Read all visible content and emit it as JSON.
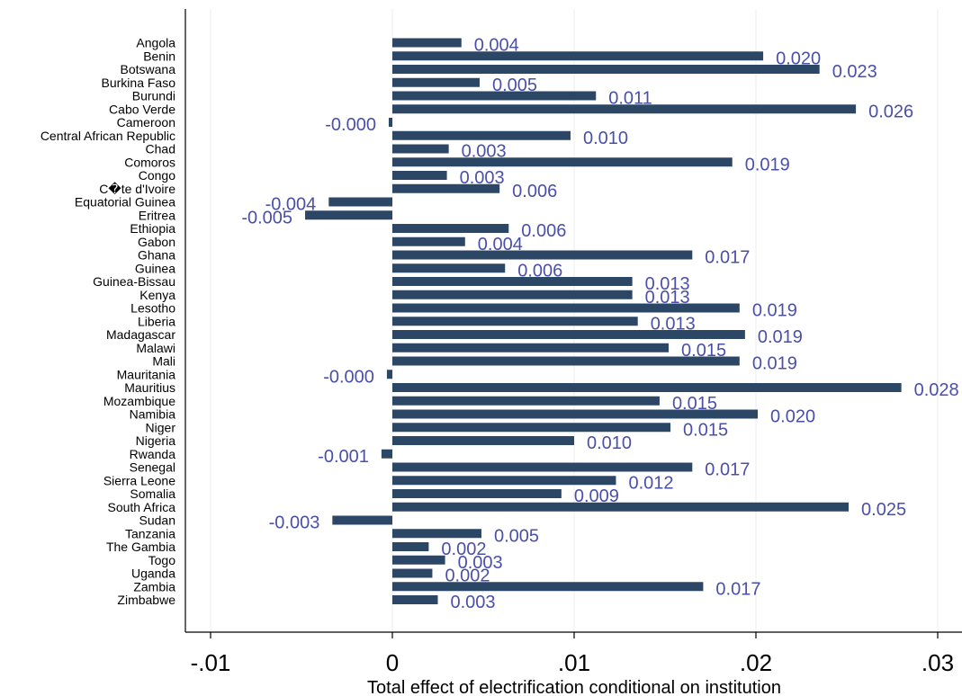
{
  "chart_data": {
    "type": "bar",
    "orientation": "horizontal",
    "xlabel": "Total effect of electrification conditional on institution",
    "ylabel": "",
    "xlim": [
      -0.011,
      0.0315
    ],
    "xticks": [
      -0.01,
      0,
      0.01,
      0.02,
      0.03
    ],
    "xtick_labels": [
      "-.01",
      "0",
      ".01",
      ".02",
      ".03"
    ],
    "grid": true,
    "bar_color": "#2c4666",
    "label_color": "#4a4fa8",
    "categories": [
      "Angola",
      "Benin",
      "Botswana",
      "Burkina Faso",
      "Burundi",
      "Cabo Verde",
      "Cameroon",
      "Central African Republic",
      "Chad",
      "Comoros",
      "Congo",
      "C�te d'Ivoire",
      "Equatorial Guinea",
      "Eritrea",
      "Ethiopia",
      "Gabon",
      "Ghana",
      "Guinea",
      "Guinea-Bissau",
      "Kenya",
      "Lesotho",
      "Liberia",
      "Madagascar",
      "Malawi",
      "Mali",
      "Mauritania",
      "Mauritius",
      "Mozambique",
      "Namibia",
      "Niger",
      "Nigeria",
      "Rwanda",
      "Senegal",
      "Sierra Leone",
      "Somalia",
      "South Africa",
      "Sudan",
      "Tanzania",
      "The Gambia",
      "Togo",
      "Uganda",
      "Zambia",
      "Zimbabwe"
    ],
    "values": [
      0.0038,
      0.0204,
      0.0235,
      0.0048,
      0.0112,
      0.0255,
      -0.0002,
      0.0098,
      0.0031,
      0.0187,
      0.003,
      0.0059,
      -0.0035,
      -0.0048,
      0.0064,
      0.004,
      0.0165,
      0.0062,
      0.0132,
      0.0132,
      0.0191,
      0.0135,
      0.0194,
      0.0152,
      0.0191,
      -0.0003,
      0.028,
      0.0147,
      0.0201,
      0.0153,
      0.01,
      -0.0006,
      0.0165,
      0.0123,
      0.0093,
      0.0251,
      -0.0033,
      0.0049,
      0.002,
      0.0029,
      0.0022,
      0.0171,
      0.0025
    ],
    "value_labels": [
      "0.004",
      "0.020",
      "0.023",
      "0.005",
      "0.011",
      "0.026",
      "-0.000",
      "0.010",
      "0.003",
      "0.019",
      "0.003",
      "0.006",
      "-0.004",
      "-0.005",
      "0.006",
      "0.004",
      "0.017",
      "0.006",
      "0.013",
      "0.013",
      "0.019",
      "0.013",
      "0.019",
      "0.015",
      "0.019",
      "-0.000",
      "0.028",
      "0.015",
      "0.020",
      "0.015",
      "0.010",
      "-0.001",
      "0.017",
      "0.012",
      "0.009",
      "0.025",
      "-0.003",
      "0.005",
      "0.002",
      "0.003",
      "0.002",
      "0.017",
      "0.003"
    ]
  }
}
